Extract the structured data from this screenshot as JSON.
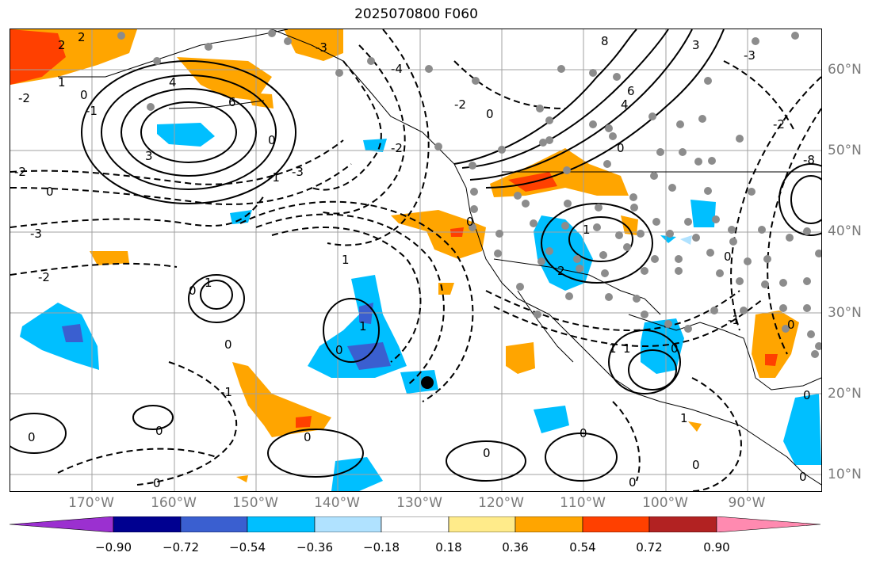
{
  "title": "2025070800 F060",
  "lat_labels": [
    "60°N",
    "50°N",
    "40°N",
    "30°N",
    "20°N",
    "10°N"
  ],
  "lon_labels": [
    "170°W",
    "160°W",
    "150°W",
    "140°W",
    "130°W",
    "120°W",
    "110°W",
    "100°W",
    "90°W"
  ],
  "colorbar": {
    "labels": [
      "−0.90",
      "−0.72",
      "−0.54",
      "−0.36",
      "−0.18",
      "0.18",
      "0.36",
      "0.54",
      "0.72",
      "0.90"
    ],
    "colors": [
      "#9b30d0",
      "#000090",
      "#3a5fd0",
      "#00bfff",
      "#b0e2ff",
      "#ffffff",
      "#ffeb8a",
      "#ffa500",
      "#ff4000",
      "#b22222",
      "#ff8ab0"
    ]
  },
  "contour_labels": [
    "2",
    "-2",
    "1",
    "0",
    "-1",
    "3",
    "-3",
    "4",
    "-4",
    "6",
    "8",
    "-8"
  ],
  "colors": {
    "grid": "#a0a0a0",
    "coast": "#000000",
    "station_dot": "#8c8c8c",
    "marker": "#000000"
  }
}
